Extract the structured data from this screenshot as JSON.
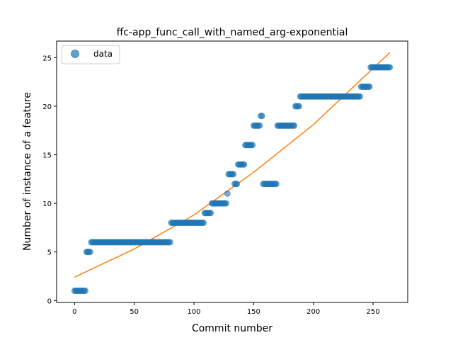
{
  "chart_data": {
    "type": "scatter",
    "title": "ffc-app_func_call_with_named_arg-exponential",
    "xlabel": "Commit number",
    "ylabel": "Number of instance of a feature",
    "xlim": [
      -15,
      279
    ],
    "ylim": [
      -0.2,
      26.7
    ],
    "xticks": [
      0,
      50,
      100,
      150,
      200,
      250
    ],
    "yticks": [
      0,
      5,
      10,
      15,
      20,
      25
    ],
    "grid": false,
    "legend_position": "top-left",
    "legend": [
      "data"
    ],
    "colors": {
      "data": "#1f77b4",
      "fit": "#ff7f0e"
    },
    "series": [
      {
        "name": "data",
        "kind": "scatter",
        "segments": [
          {
            "x_from": 0,
            "x_to": 9,
            "y": 1
          },
          {
            "x_from": 10,
            "x_to": 13,
            "y": 5
          },
          {
            "x_from": 14,
            "x_to": 80,
            "y": 6
          },
          {
            "x_from": 81,
            "x_to": 108,
            "y": 8
          },
          {
            "x_from": 109,
            "x_to": 114,
            "y": 9
          },
          {
            "x_from": 115,
            "x_to": 127,
            "y": 10
          },
          {
            "x_from": 128,
            "x_to": 128,
            "y": 11
          },
          {
            "x_from": 129,
            "x_to": 133,
            "y": 13
          },
          {
            "x_from": 134,
            "x_to": 136,
            "y": 12
          },
          {
            "x_from": 137,
            "x_to": 142,
            "y": 14
          },
          {
            "x_from": 143,
            "x_to": 149,
            "y": 16
          },
          {
            "x_from": 150,
            "x_to": 155,
            "y": 18
          },
          {
            "x_from": 156,
            "x_to": 157,
            "y": 19
          },
          {
            "x_from": 158,
            "x_to": 169,
            "y": 12
          },
          {
            "x_from": 170,
            "x_to": 184,
            "y": 18
          },
          {
            "x_from": 185,
            "x_to": 188,
            "y": 20
          },
          {
            "x_from": 189,
            "x_to": 239,
            "y": 21
          },
          {
            "x_from": 240,
            "x_to": 247,
            "y": 22
          },
          {
            "x_from": 248,
            "x_to": 264,
            "y": 24
          }
        ]
      },
      {
        "name": "fit",
        "kind": "line",
        "x": [
          0,
          50,
          100,
          150,
          200,
          250,
          264
        ],
        "y": [
          2.4,
          5.3,
          8.8,
          13.2,
          18.1,
          23.9,
          25.5
        ]
      }
    ]
  }
}
